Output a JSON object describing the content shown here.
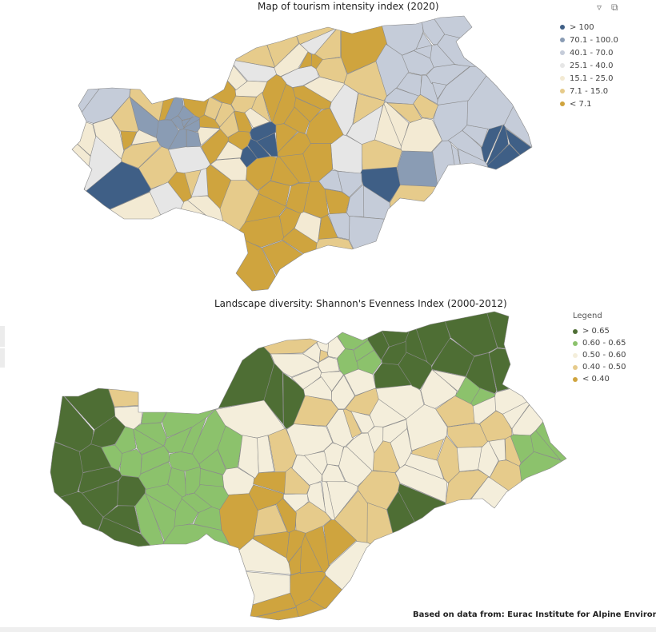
{
  "top_map": {
    "title": "Map of tourism intensity index (2020)",
    "toolbar": {
      "filter_icon": "filter-icon",
      "focus_icon": "focus-mode-icon"
    },
    "legend": [
      {
        "label": "> 100",
        "color": "#3f5f86"
      },
      {
        "label": "70.1 - 100.0",
        "color": "#8a9cb4"
      },
      {
        "label": "40.1 - 70.0",
        "color": "#c5ccd9"
      },
      {
        "label": "25.1 - 40.0",
        "color": "#e6e6e6"
      },
      {
        "label": "15.1 - 25.0",
        "color": "#f3ead3"
      },
      {
        "label": "7.1 - 15.0",
        "color": "#e6cb8b"
      },
      {
        "label": "< 7.1",
        "color": "#cfa43e"
      }
    ]
  },
  "bottom_map": {
    "title": "Landscape diversity: Shannon's Evenness Index (2000-2012)",
    "legend_title": "Legend",
    "legend": [
      {
        "label": "> 0.65",
        "color": "#4e6e34"
      },
      {
        "label": "0.60 - 0.65",
        "color": "#8cc26c"
      },
      {
        "label": "0.50 - 0.60",
        "color": "#f4eedb"
      },
      {
        "label": "0.40 - 0.50",
        "color": "#e6cb8b"
      },
      {
        "label": "< 0.40",
        "color": "#cfa43e"
      }
    ]
  },
  "source_note": "Based on data from: Eurac Institute for Alpine Environment"
}
